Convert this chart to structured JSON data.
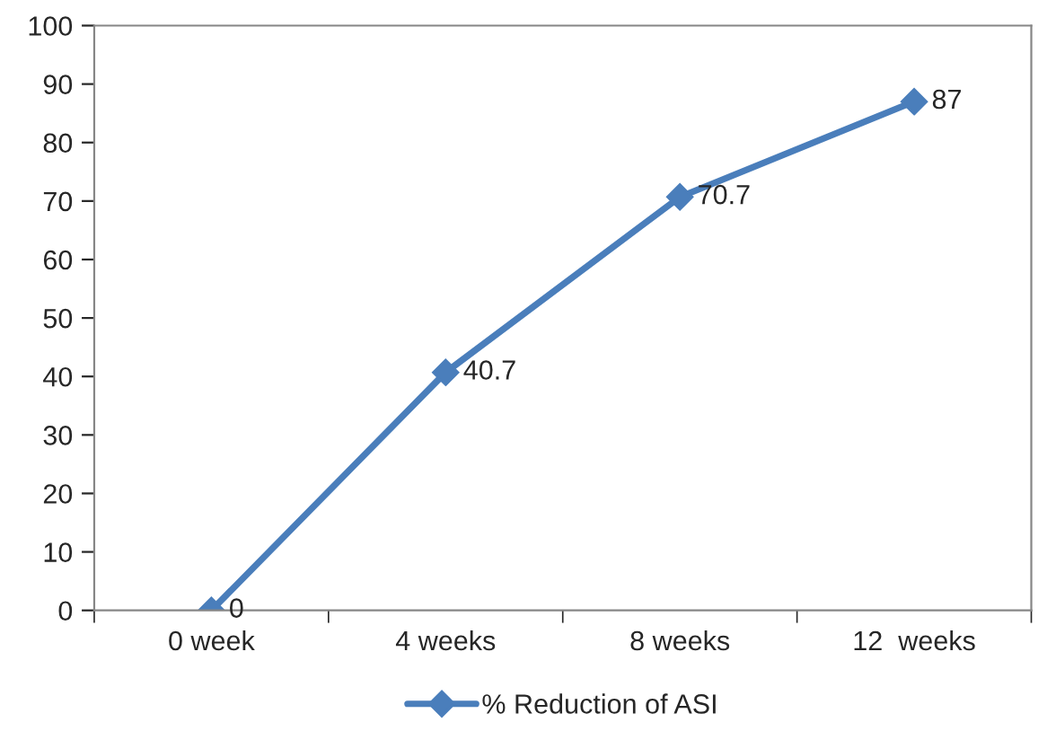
{
  "chart_data": {
    "type": "line",
    "categories": [
      "0 week",
      "4 weeks",
      "8 weeks",
      "12  weeks"
    ],
    "series": [
      {
        "name": "% Reduction of ASI",
        "color": "#4a7ebb",
        "values": [
          0,
          40.7,
          70.7,
          87
        ]
      }
    ],
    "ylim": [
      0,
      100
    ],
    "yticks": [
      0,
      10,
      20,
      30,
      40,
      50,
      60,
      70,
      80,
      90,
      100
    ],
    "data_labels": true,
    "legend": "bottom",
    "marker": "diamond",
    "line_style": "solid",
    "grid": false
  }
}
